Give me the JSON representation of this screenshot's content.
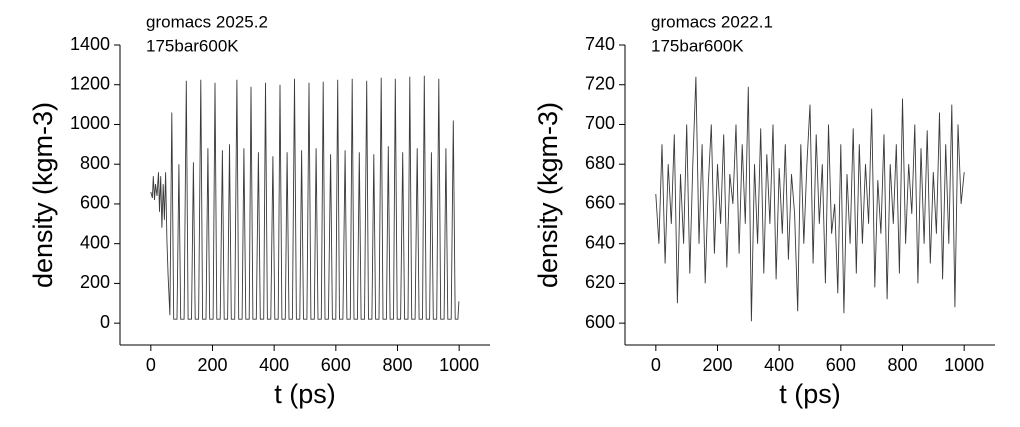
{
  "chart_data": [
    {
      "type": "line",
      "annotations": [
        "gromacs 2025.2",
        "175bar600K"
      ],
      "x_label": "t (ps)",
      "y_label": "density (kgm-3)",
      "xlim": [
        -100,
        1100
      ],
      "xticks": [
        0,
        200,
        400,
        600,
        800,
        1000
      ],
      "ylim": [
        -110,
        1400
      ],
      "yticks": [
        0,
        200,
        400,
        600,
        800,
        1000,
        1200,
        1400
      ],
      "color": "#3a3a3a",
      "x": [
        0,
        5,
        8,
        12,
        15,
        20,
        25,
        28,
        32,
        36,
        40,
        44,
        48,
        52,
        56,
        62,
        68,
        74,
        85,
        91,
        97,
        108,
        115,
        121,
        132,
        138,
        144,
        155,
        162,
        168,
        179,
        185,
        191,
        202,
        208,
        214,
        225,
        232,
        238,
        249,
        255,
        261,
        272,
        279,
        285,
        296,
        302,
        308,
        319,
        325,
        331,
        342,
        349,
        355,
        366,
        372,
        378,
        389,
        396,
        402,
        413,
        419,
        425,
        436,
        442,
        448,
        459,
        466,
        472,
        483,
        489,
        495,
        506,
        513,
        519,
        530,
        536,
        542,
        553,
        559,
        565,
        576,
        583,
        589,
        600,
        606,
        612,
        623,
        630,
        636,
        647,
        653,
        659,
        670,
        676,
        682,
        693,
        700,
        706,
        717,
        723,
        729,
        740,
        747,
        753,
        764,
        770,
        776,
        787,
        793,
        799,
        810,
        817,
        823,
        834,
        840,
        846,
        857,
        864,
        870,
        881,
        887,
        893,
        904,
        910,
        916,
        927,
        934,
        940,
        951,
        957,
        963,
        974,
        981,
        987,
        996,
        999
      ],
      "values": [
        660,
        630,
        740,
        620,
        700,
        640,
        760,
        560,
        740,
        480,
        700,
        520,
        760,
        420,
        240,
        40,
        1060,
        20,
        20,
        800,
        20,
        20,
        1220,
        20,
        20,
        810,
        20,
        20,
        1225,
        20,
        20,
        880,
        20,
        20,
        1210,
        20,
        20,
        870,
        20,
        20,
        900,
        20,
        20,
        1225,
        20,
        20,
        880,
        20,
        20,
        1190,
        20,
        20,
        860,
        20,
        20,
        1210,
        20,
        20,
        840,
        20,
        20,
        1200,
        20,
        20,
        860,
        20,
        20,
        1230,
        20,
        20,
        870,
        20,
        20,
        1210,
        20,
        20,
        880,
        20,
        20,
        1215,
        20,
        20,
        850,
        20,
        20,
        1225,
        20,
        20,
        870,
        20,
        20,
        1230,
        20,
        20,
        860,
        20,
        20,
        1220,
        20,
        20,
        850,
        20,
        20,
        1235,
        20,
        20,
        890,
        20,
        20,
        1230,
        20,
        20,
        860,
        20,
        20,
        1240,
        20,
        20,
        880,
        20,
        20,
        1245,
        20,
        20,
        860,
        20,
        20,
        1230,
        20,
        20,
        880,
        20,
        20,
        1020,
        20,
        20,
        110
      ]
    },
    {
      "type": "line",
      "annotations": [
        "gromacs 2022.1",
        "175bar600K"
      ],
      "x_label": "t (ps)",
      "y_label": "density (kgm-3)",
      "xlim": [
        -100,
        1100
      ],
      "xticks": [
        0,
        200,
        400,
        600,
        800,
        1000
      ],
      "ylim": [
        589,
        740
      ],
      "yticks": [
        600,
        620,
        640,
        660,
        680,
        700,
        720,
        740
      ],
      "color": "#3a3a3a",
      "x": [
        0,
        10,
        20,
        30,
        40,
        50,
        60,
        70,
        80,
        90,
        100,
        110,
        120,
        130,
        140,
        150,
        160,
        170,
        180,
        190,
        200,
        210,
        220,
        230,
        240,
        250,
        260,
        270,
        280,
        290,
        300,
        310,
        320,
        330,
        340,
        350,
        360,
        370,
        380,
        390,
        400,
        410,
        420,
        430,
        440,
        450,
        460,
        470,
        480,
        490,
        500,
        510,
        520,
        530,
        540,
        550,
        560,
        570,
        580,
        590,
        600,
        610,
        620,
        630,
        640,
        650,
        660,
        670,
        680,
        690,
        700,
        710,
        720,
        730,
        740,
        750,
        760,
        770,
        780,
        790,
        800,
        810,
        820,
        830,
        840,
        850,
        860,
        870,
        880,
        890,
        900,
        910,
        920,
        930,
        940,
        950,
        960,
        970,
        980,
        990,
        1000
      ],
      "values": [
        665,
        640,
        690,
        630,
        680,
        650,
        695,
        610,
        675,
        640,
        700,
        625,
        680,
        724,
        640,
        690,
        620,
        670,
        700,
        635,
        680,
        650,
        695,
        628,
        675,
        660,
        700,
        635,
        690,
        650,
        719,
        601,
        680,
        640,
        698,
        625,
        685,
        650,
        700,
        622,
        678,
        645,
        690,
        632,
        675,
        655,
        606,
        690,
        640,
        680,
        710,
        630,
        695,
        650,
        680,
        620,
        700,
        645,
        660,
        615,
        690,
        605,
        675,
        640,
        698,
        625,
        690,
        640,
        680,
        650,
        708,
        618,
        672,
        645,
        695,
        612,
        680,
        650,
        690,
        625,
        713,
        640,
        680,
        655,
        700,
        620,
        688,
        640,
        697,
        630,
        676,
        645,
        706,
        622,
        690,
        640,
        710,
        608,
        700,
        660,
        676
      ]
    }
  ]
}
